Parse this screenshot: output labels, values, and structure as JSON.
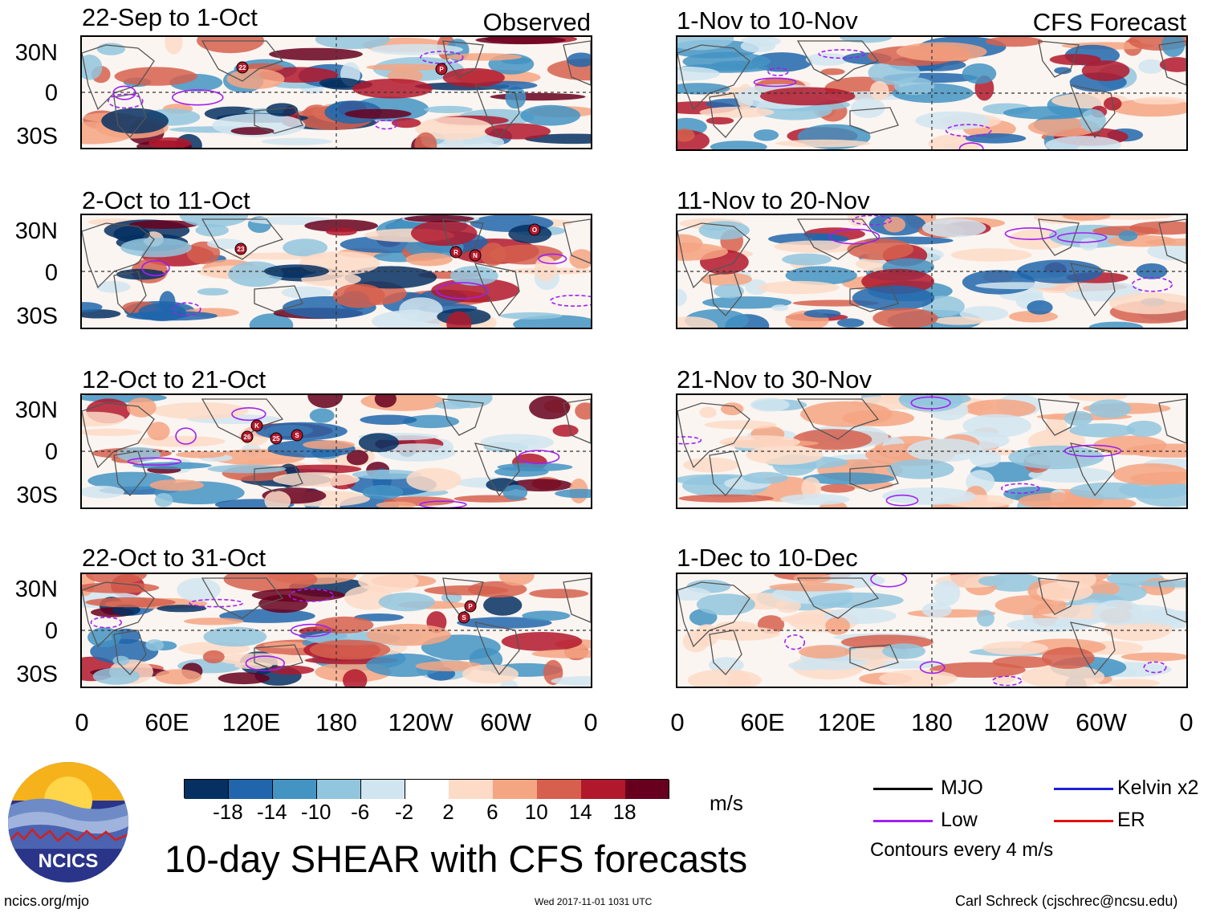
{
  "panels_left": [
    {
      "title": "22-Sep to 1-Oct",
      "tag": "Observed"
    },
    {
      "title": "2-Oct to 11-Oct",
      "tag": ""
    },
    {
      "title": "12-Oct to 21-Oct",
      "tag": ""
    },
    {
      "title": "22-Oct to 31-Oct",
      "tag": ""
    }
  ],
  "panels_right": [
    {
      "title": "1-Nov to 10-Nov",
      "tag": "CFS Forecast"
    },
    {
      "title": "11-Nov to 20-Nov",
      "tag": ""
    },
    {
      "title": "21-Nov to 30-Nov",
      "tag": ""
    },
    {
      "title": "1-Dec to 10-Dec",
      "tag": ""
    }
  ],
  "lat_labels": [
    "30N",
    "0",
    "30S"
  ],
  "lon_labels": [
    "0",
    "60E",
    "120E",
    "180",
    "120W",
    "60W",
    "0"
  ],
  "storm_markers": [
    {
      "panel": 0,
      "label": "22"
    },
    {
      "panel": 0,
      "label": "P"
    },
    {
      "panel": 1,
      "label": "23"
    },
    {
      "panel": 1,
      "label": "R"
    },
    {
      "panel": 1,
      "label": "N"
    },
    {
      "panel": 1,
      "label": "O"
    },
    {
      "panel": 2,
      "label": "K"
    },
    {
      "panel": 2,
      "label": "26"
    },
    {
      "panel": 2,
      "label": "25"
    },
    {
      "panel": 2,
      "label": "S"
    },
    {
      "panel": 3,
      "label": "P"
    },
    {
      "panel": 3,
      "label": "S"
    }
  ],
  "colorbar": {
    "ticks": [
      "-18",
      "-14",
      "-10",
      "-6",
      "-2",
      "2",
      "6",
      "10",
      "14",
      "18"
    ],
    "colors": [
      "#053061",
      "#2166ac",
      "#4393c3",
      "#92c5de",
      "#d1e5f0",
      "#ffffff",
      "#fddbc7",
      "#f4a582",
      "#d6604d",
      "#b2182b",
      "#67001f"
    ],
    "unit": "m/s"
  },
  "legend": {
    "mjo": {
      "label": "MJO",
      "color": "#000000"
    },
    "kelvin": {
      "label": "Kelvin x2",
      "color": "#1f1fd6"
    },
    "low": {
      "label": "Low",
      "color": "#a020f0"
    },
    "er": {
      "label": "ER",
      "color": "#e01010"
    },
    "note": "Contours every 4 m/s"
  },
  "logo_text": "NCICS",
  "main_title": "10-day SHEAR with CFS forecasts",
  "footer": {
    "left": "ncics.org/mjo",
    "center": "Wed 2017-11-01 1031 UTC",
    "right": "Carl Schreck (cjschrec@ncsu.edu)"
  }
}
